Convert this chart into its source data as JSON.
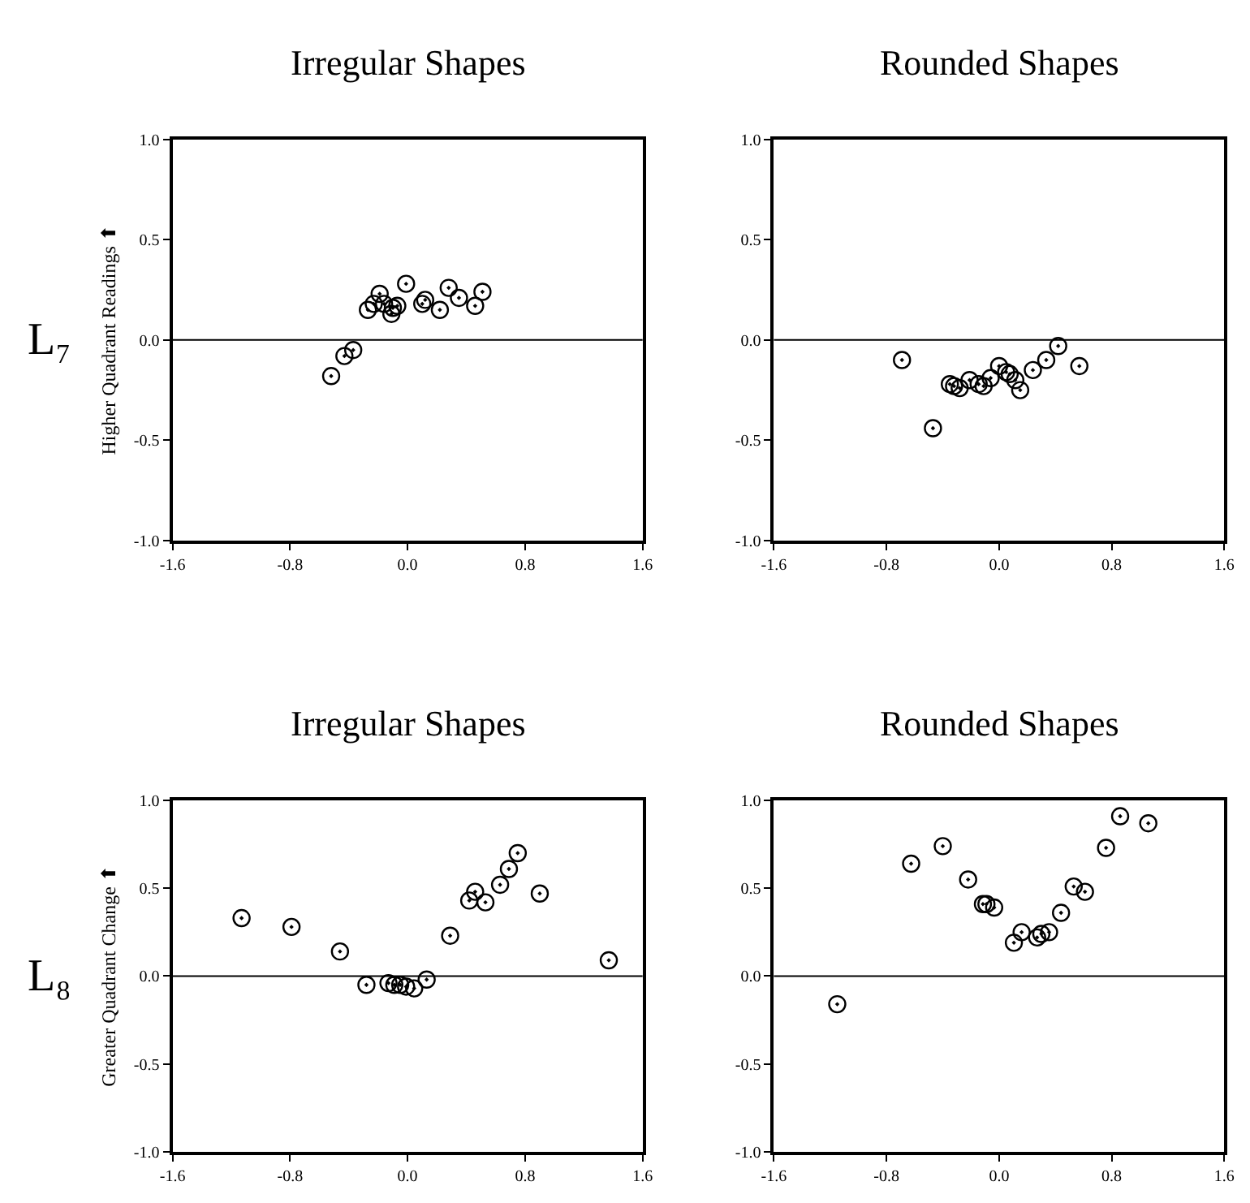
{
  "chart_data": [
    {
      "type": "scatter",
      "title": "Irregular Shapes",
      "ylabel": "Higher Quadrant Readings ⬆",
      "annotations": [
        "L₇"
      ],
      "marker": "circle",
      "series": [
        {
          "color": "#000000",
          "x": [
            -0.52,
            -0.43,
            -0.37,
            -0.27,
            -0.23,
            -0.19,
            -0.16,
            -0.11,
            -0.1,
            -0.07,
            -0.01,
            0.1,
            0.12,
            0.22,
            0.28,
            0.35,
            0.46,
            0.51
          ],
          "values": [
            -0.18,
            -0.08,
            -0.05,
            0.15,
            0.18,
            0.23,
            0.18,
            0.13,
            0.16,
            0.17,
            0.28,
            0.18,
            0.2,
            0.15,
            0.26,
            0.21,
            0.17,
            0.24
          ]
        }
      ],
      "xlim": [
        -1.6,
        1.6
      ],
      "ylim": [
        -1.0,
        1.0
      ],
      "xticks": [
        {
          "value": -1.6,
          "label": "-1.6"
        },
        {
          "value": -0.8,
          "label": "-0.8"
        },
        {
          "value": 0,
          "label": "0.0"
        },
        {
          "value": 0.8,
          "label": "0.8"
        },
        {
          "value": 1.6,
          "label": "1.6"
        }
      ],
      "yticks": [
        {
          "value": -1,
          "label": "-1.0"
        },
        {
          "value": -0.5,
          "label": "-0.5"
        },
        {
          "value": 0,
          "label": "0.0"
        },
        {
          "value": 0.5,
          "label": "0.5"
        },
        {
          "value": 1,
          "label": "1.0"
        }
      ],
      "ref_lines": [
        {
          "axis": "y",
          "value": 0,
          "color": "#000000"
        }
      ]
    },
    {
      "type": "scatter",
      "title": "Rounded Shapes",
      "marker": "circle",
      "series": [
        {
          "color": "#000000",
          "x": [
            -0.69,
            -0.47,
            -0.35,
            -0.32,
            -0.28,
            -0.21,
            -0.145,
            -0.11,
            -0.06,
            0.0,
            0.05,
            0.075,
            0.115,
            0.15,
            0.24,
            0.335,
            0.42,
            0.57
          ],
          "values": [
            -0.1,
            -0.44,
            -0.22,
            -0.23,
            -0.24,
            -0.2,
            -0.22,
            -0.23,
            -0.19,
            -0.13,
            -0.16,
            -0.17,
            -0.2,
            -0.25,
            -0.15,
            -0.1,
            -0.03,
            -0.13
          ]
        }
      ],
      "xlim": [
        -1.6,
        1.6
      ],
      "ylim": [
        -1.0,
        1.0
      ],
      "xticks": [
        {
          "value": -1.6,
          "label": "-1.6"
        },
        {
          "value": -0.8,
          "label": "-0.8"
        },
        {
          "value": 0,
          "label": "0.0"
        },
        {
          "value": 0.8,
          "label": "0.8"
        },
        {
          "value": 1.6,
          "label": "1.6"
        }
      ],
      "yticks": [
        {
          "value": -1,
          "label": "-1.0"
        },
        {
          "value": -0.5,
          "label": "-0.5"
        },
        {
          "value": 0,
          "label": "0.0"
        },
        {
          "value": 0.5,
          "label": "0.5"
        },
        {
          "value": 1,
          "label": "1.0"
        }
      ],
      "ref_lines": [
        {
          "axis": "y",
          "value": 0,
          "color": "#000000"
        }
      ]
    },
    {
      "type": "scatter",
      "title": "Irregular Shapes",
      "ylabel": "Greater Quadrant Change ⬆",
      "annotations": [
        "L₈"
      ],
      "marker": "circle",
      "series": [
        {
          "color": "#000000",
          "x": [
            -1.13,
            -0.79,
            -0.46,
            -0.28,
            -0.13,
            -0.09,
            -0.05,
            -0.01,
            0.045,
            0.13,
            0.29,
            0.42,
            0.46,
            0.53,
            0.63,
            0.69,
            0.75,
            0.9,
            1.37
          ],
          "values": [
            0.33,
            0.28,
            0.14,
            -0.05,
            -0.04,
            -0.05,
            -0.05,
            -0.06,
            -0.07,
            -0.02,
            0.23,
            0.43,
            0.48,
            0.42,
            0.52,
            0.61,
            0.7,
            0.47,
            0.09
          ]
        }
      ],
      "xlim": [
        -1.6,
        1.6
      ],
      "ylim": [
        -1.0,
        1.0
      ],
      "xticks": [
        {
          "value": -1.6,
          "label": "-1.6"
        },
        {
          "value": -0.8,
          "label": "-0.8"
        },
        {
          "value": 0,
          "label": "0.0"
        },
        {
          "value": 0.8,
          "label": "0.8"
        },
        {
          "value": 1.6,
          "label": "1.6"
        }
      ],
      "yticks": [
        {
          "value": -1,
          "label": "-1.0"
        },
        {
          "value": -0.5,
          "label": "-0.5"
        },
        {
          "value": 0,
          "label": "0.0"
        },
        {
          "value": 0.5,
          "label": "0.5"
        },
        {
          "value": 1,
          "label": "1.0"
        }
      ],
      "ref_lines": [
        {
          "axis": "y",
          "value": 0,
          "color": "#000000"
        }
      ]
    },
    {
      "type": "scatter",
      "title": "Rounded Shapes",
      "marker": "circle",
      "series": [
        {
          "color": "#000000",
          "x": [
            -1.15,
            -0.625,
            -0.4,
            -0.22,
            -0.115,
            -0.09,
            -0.035,
            0.105,
            0.16,
            0.27,
            0.3,
            0.355,
            0.44,
            0.53,
            0.61,
            0.76,
            0.86,
            1.06
          ],
          "values": [
            -0.16,
            0.64,
            0.74,
            0.55,
            0.41,
            0.41,
            0.39,
            0.19,
            0.25,
            0.22,
            0.24,
            0.25,
            0.36,
            0.51,
            0.48,
            0.73,
            0.91,
            0.87
          ]
        }
      ],
      "xlim": [
        -1.6,
        1.6
      ],
      "ylim": [
        -1.0,
        1.0
      ],
      "xticks": [
        {
          "value": -1.6,
          "label": "-1.6"
        },
        {
          "value": -0.8,
          "label": "-0.8"
        },
        {
          "value": 0,
          "label": "0.0"
        },
        {
          "value": 0.8,
          "label": "0.8"
        },
        {
          "value": 1.6,
          "label": "1.6"
        }
      ],
      "yticks": [
        {
          "value": -1,
          "label": "-1.0"
        },
        {
          "value": -0.5,
          "label": "-0.5"
        },
        {
          "value": 0,
          "label": "0.0"
        },
        {
          "value": 0.5,
          "label": "0.5"
        },
        {
          "value": 1,
          "label": "1.0"
        }
      ],
      "ref_lines": [
        {
          "axis": "y",
          "value": 0,
          "color": "#000000"
        }
      ]
    }
  ]
}
